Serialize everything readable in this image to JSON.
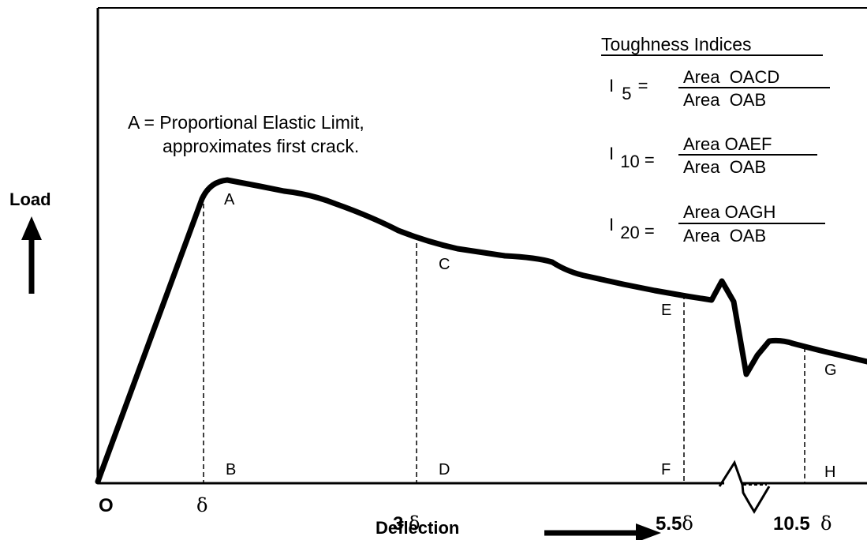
{
  "colors": {
    "ink": "#000000",
    "background": "#ffffff"
  },
  "diagram": {
    "y_axis_label": "Load",
    "x_axis_label": "Deflection",
    "origin_label": "O",
    "point_labels": {
      "A": "A",
      "B": "B",
      "C": "C",
      "D": "D",
      "E": "E",
      "F": "F",
      "G": "G",
      "H": "H"
    },
    "x_ticks": [
      {
        "prefix": "",
        "symbol": "δ"
      },
      {
        "prefix": "3 ",
        "symbol": "δ"
      },
      {
        "prefix": "5.5",
        "symbol": "δ"
      },
      {
        "prefix": "10.5  ",
        "symbol": "δ"
      }
    ],
    "annotation": {
      "line1": "A = Proportional Elastic Limit,",
      "line2": "approximates first crack."
    },
    "toughness": {
      "heading": "Toughness Indices",
      "indices": [
        {
          "letter": "I",
          "sub": "5",
          "eq": "=",
          "numerator": "Area  OACD",
          "denominator": "Area  OAB"
        },
        {
          "letter": "I",
          "sub": "10",
          "eq": "=",
          "numerator": "Area OAEF",
          "denominator": "Area  OAB"
        },
        {
          "letter": "I",
          "sub": "20",
          "eq": "=",
          "numerator": "Area OAGH",
          "denominator": "Area  OAB"
        }
      ]
    }
  }
}
